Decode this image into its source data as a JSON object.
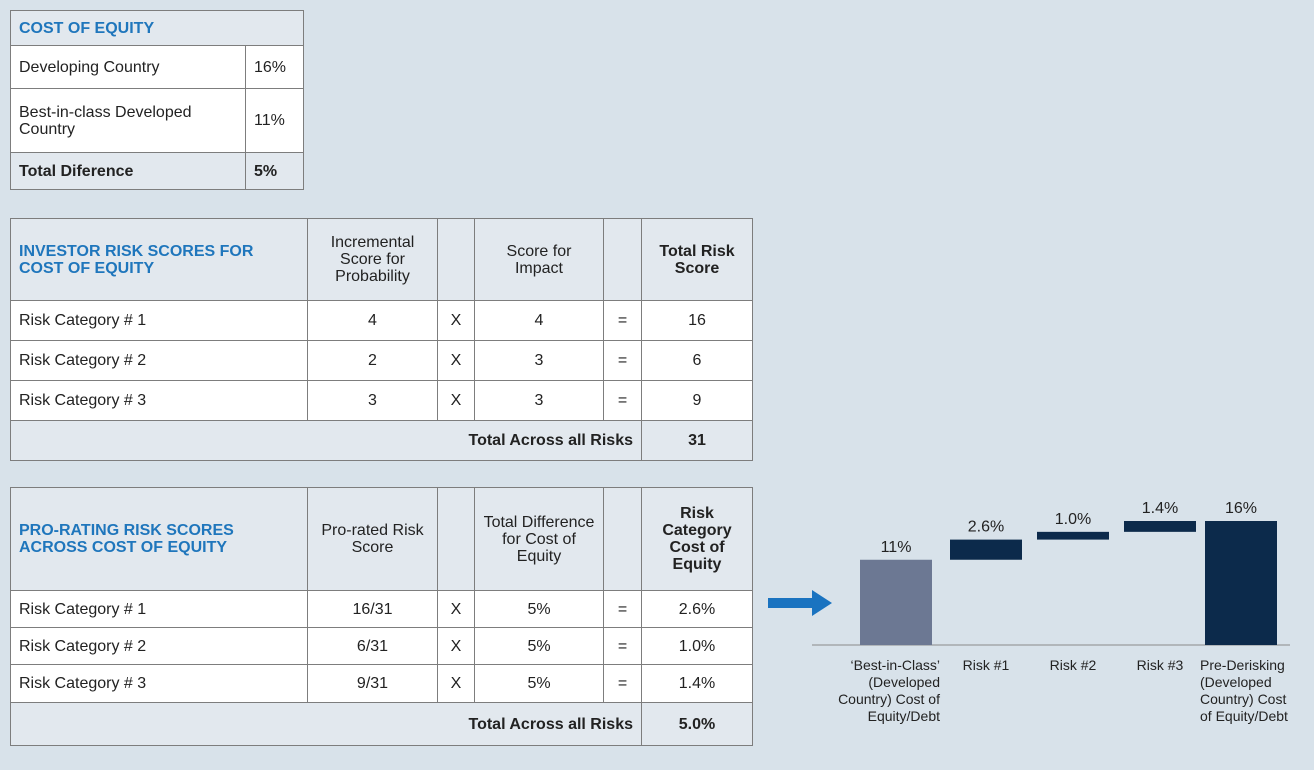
{
  "cost_of_equity": {
    "title": "COST OF EQUITY",
    "rows": [
      [
        "Developing Country",
        "16%"
      ],
      [
        "Best-in-class Developed Country",
        "11%"
      ]
    ],
    "total": [
      "Total Diference",
      "5%"
    ]
  },
  "risk_scores": {
    "title": "INVESTOR RISK SCORES FOR COST OF EQUITY",
    "headers": [
      "Incremental Score for Probability",
      "Score for Impact",
      "Total Risk Score"
    ],
    "rows": [
      [
        "Risk Category # 1",
        4,
        "X",
        4,
        "=",
        16
      ],
      [
        "Risk Category # 2",
        2,
        "X",
        3,
        "=",
        6
      ],
      [
        "Risk Category # 3",
        3,
        "X",
        3,
        "=",
        9
      ]
    ],
    "total": [
      "Total Across all Risks",
      31
    ]
  },
  "pro_rating": {
    "title": "PRO-RATING RISK SCORES ACROSS COST OF EQUITY",
    "headers": [
      "Pro-rated Risk Score",
      "Total Difference for Cost of Equity",
      "Risk Category Cost of Equity"
    ],
    "rows": [
      [
        "Risk Category # 1",
        "16/31",
        "X",
        "5%",
        "=",
        "2.6%"
      ],
      [
        "Risk Category # 2",
        "6/31",
        "X",
        "5%",
        "=",
        "1.0%"
      ],
      [
        "Risk Category # 3",
        "9/31",
        "X",
        "5%",
        "=",
        "1.4%"
      ]
    ],
    "total": [
      "Total Across all Risks",
      "5.0%"
    ]
  },
  "chart_data": {
    "type": "waterfall",
    "categories": [
      "‘Best-in-Class’ (Developed Country) Cost of Equity/Debt",
      "Risk #1",
      "Risk #2",
      "Risk #3",
      "Pre-Derisking (Developed Country) Cost of Equity/Debt"
    ],
    "values": [
      11,
      2.6,
      1.0,
      1.4,
      16
    ],
    "value_labels": [
      "11%",
      "2.6%",
      "1.0%",
      "1.4%",
      "16%"
    ],
    "start_color": "#6c7893",
    "color": "#0c2a4b"
  }
}
